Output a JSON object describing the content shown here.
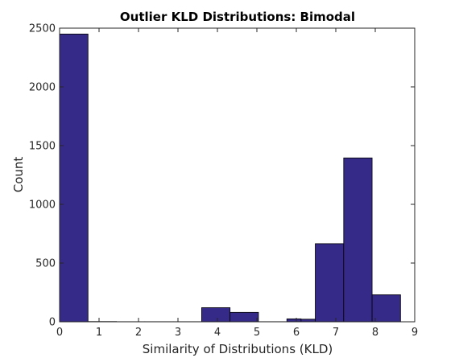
{
  "chart_data": {
    "type": "bar",
    "title": "Outlier KLD Distributions: Bimodal",
    "xlabel": "Similarity of Distributions (KLD)",
    "ylabel": "Count",
    "xlim": [
      0,
      9
    ],
    "ylim": [
      0,
      2500
    ],
    "xticks": [
      0,
      1,
      2,
      3,
      4,
      5,
      6,
      7,
      8,
      9
    ],
    "yticks": [
      0,
      500,
      1000,
      1500,
      2000,
      2500
    ],
    "bin_edges": [
      0,
      0.72,
      1.44,
      2.16,
      2.88,
      3.6,
      4.32,
      5.04,
      5.76,
      6.48,
      7.2,
      7.92,
      8.64
    ],
    "counts": [
      2450,
      2,
      1,
      1,
      1,
      120,
      80,
      1,
      25,
      665,
      1395,
      230
    ],
    "extra_bars": [
      {
        "x0": 5.76,
        "x1": 6.12,
        "value": 25
      },
      {
        "x0": 6.12,
        "x1": 6.48,
        "value": 22
      }
    ],
    "bar_color": "#352a87",
    "edge_color": "#000000",
    "grid": false,
    "legend": "none"
  }
}
